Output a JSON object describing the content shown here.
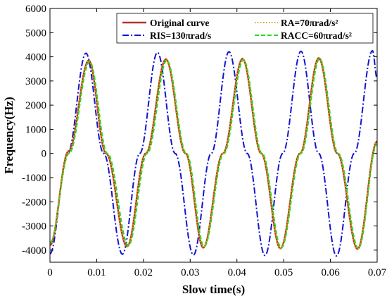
{
  "chart_data": {
    "type": "line",
    "xlabel": "Slow time(s)",
    "ylabel": "Frequency(Hz)",
    "xlim": [
      0,
      0.07
    ],
    "ylim": [
      -4500,
      6000
    ],
    "xticks": [
      "0",
      "0.01",
      "0.02",
      "0.03",
      "0.04",
      "0.05",
      "0.06",
      "0.07"
    ],
    "yticks": [
      "-4000",
      "-3000",
      "-2000",
      "-1000",
      "0",
      "1000",
      "2000",
      "3000",
      "4000",
      "5000",
      "6000"
    ],
    "legend_position": "top-right",
    "series": [
      {
        "name": "Original curve",
        "color": "#b8322a",
        "style": "solid",
        "x": [
          0,
          0.004,
          0.0083,
          0.012,
          0.0165,
          0.0205,
          0.0248,
          0.029,
          0.0328,
          0.037,
          0.0412,
          0.0452,
          0.0493,
          0.0535,
          0.0575,
          0.0615,
          0.0658,
          0.07
        ],
        "y": [
          -3800,
          100,
          3850,
          0,
          -3850,
          0,
          3900,
          0,
          -3900,
          0,
          3920,
          0,
          -3930,
          0,
          3950,
          0,
          -3950,
          500
        ]
      },
      {
        "name": "RA=70πrad/s²",
        "color": "#d9a400",
        "style": "dotted",
        "x": [
          0,
          0.004,
          0.0083,
          0.012,
          0.0165,
          0.0205,
          0.0248,
          0.029,
          0.0328,
          0.037,
          0.0412,
          0.0452,
          0.0493,
          0.0535,
          0.0575,
          0.0615,
          0.0658,
          0.07
        ],
        "y": [
          -3800,
          100,
          3850,
          0,
          -3850,
          0,
          3900,
          0,
          -3900,
          0,
          3920,
          0,
          -3930,
          0,
          3950,
          0,
          -3950,
          500
        ]
      },
      {
        "name": "RIS=130πrad/s",
        "color": "#1414d2",
        "style": "dashdot",
        "x": [
          0,
          0.0038,
          0.0077,
          0.0115,
          0.0155,
          0.0192,
          0.023,
          0.0268,
          0.0307,
          0.0345,
          0.0383,
          0.0422,
          0.046,
          0.0498,
          0.0537,
          0.0575,
          0.0613,
          0.0651,
          0.069,
          0.07
        ],
        "y": [
          -4150,
          0,
          4150,
          0,
          -4170,
          0,
          4180,
          0,
          -4200,
          0,
          4210,
          0,
          -4220,
          0,
          4230,
          0,
          -4240,
          0,
          4250,
          3100
        ]
      },
      {
        "name": "RACC=60πrad/s²",
        "color": "#22dd22",
        "style": "dashed",
        "x": [
          0,
          0.0041,
          0.0085,
          0.0123,
          0.0168,
          0.0208,
          0.025,
          0.0292,
          0.033,
          0.0372,
          0.0414,
          0.0454,
          0.0495,
          0.0537,
          0.0577,
          0.0617,
          0.066,
          0.07
        ],
        "y": [
          -3700,
          0,
          3800,
          0,
          -3800,
          0,
          3850,
          0,
          -3850,
          0,
          3880,
          0,
          -3900,
          0,
          3920,
          0,
          -3920,
          400
        ]
      }
    ]
  }
}
